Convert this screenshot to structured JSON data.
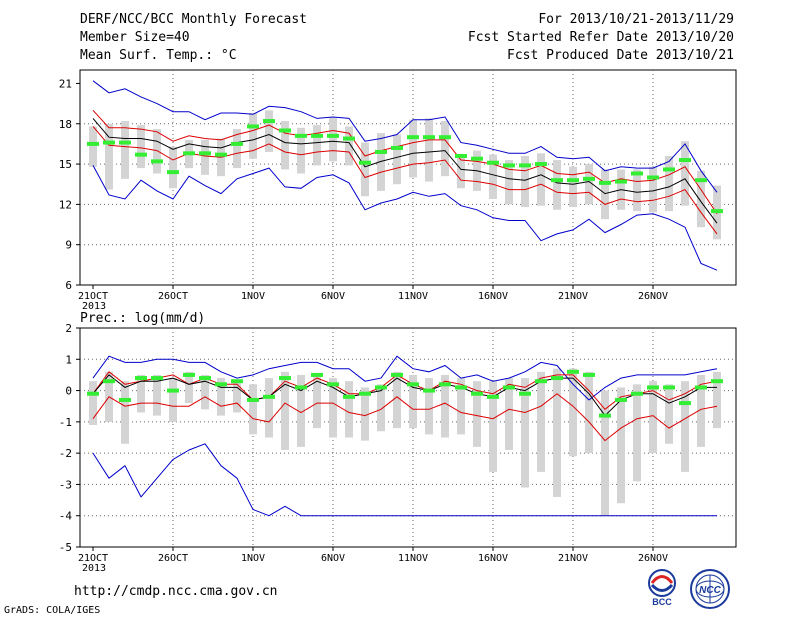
{
  "header": {
    "title": "DERF/NCC/BCC Monthly Forecast",
    "member_size": "Member Size=40",
    "variable_label": "Mean Surf. Temp.: °C",
    "forecast_period": "For 2013/10/21-2013/11/29",
    "refer_date": "Fcst Started Refer Date 2013/10/20",
    "produced_date": "Fcst Produced Date 2013/10/21"
  },
  "footer": {
    "url": "http://cmdp.ncc.cma.gov.cn",
    "credit": "GrADS: COLA/IGES",
    "logo_left_text": "BCC",
    "logo_right_text": "NCC"
  },
  "colors": {
    "mean": "#000000",
    "spread": "#dd0000",
    "envelope": "#0000cc",
    "box": "#d4d4d4",
    "median": "#33ee33"
  },
  "chart_data": [
    {
      "type": "line",
      "title": "Mean Surf. Temp.: °C",
      "x_tick_labels": [
        "21OCT",
        "26OCT",
        "1NOV",
        "6NOV",
        "11NOV",
        "16NOV",
        "21NOV",
        "26NOV"
      ],
      "x_year_label": "2013",
      "ylim": [
        6,
        22
      ],
      "yticks": [
        6,
        9,
        12,
        15,
        18,
        21
      ],
      "grid": true,
      "series": [
        {
          "role": "max",
          "values": [
            21.2,
            20.3,
            20.6,
            20.0,
            19.5,
            18.9,
            18.9,
            18.3,
            18.8,
            18.8,
            18.7,
            19.3,
            19.2,
            18.9,
            18.4,
            18.5,
            18.4,
            16.7,
            16.9,
            17.2,
            18.3,
            18.3,
            18.5,
            16.6,
            16.4,
            16.1,
            15.8,
            15.8,
            16.3,
            15.5,
            15.4,
            15.5,
            14.5,
            14.8,
            14.7,
            14.7,
            15.2,
            16.5,
            14.5,
            12.9
          ]
        },
        {
          "role": "upper",
          "values": [
            19.0,
            17.7,
            17.7,
            17.6,
            17.4,
            16.7,
            17.1,
            16.9,
            16.8,
            17.2,
            17.5,
            17.9,
            17.3,
            17.1,
            17.3,
            17.5,
            17.3,
            15.6,
            16.0,
            16.3,
            16.6,
            16.8,
            16.8,
            15.3,
            15.2,
            15.0,
            14.6,
            14.5,
            14.9,
            14.3,
            14.2,
            14.4,
            13.6,
            13.9,
            13.7,
            13.8,
            14.2,
            14.8,
            13.1,
            11.3
          ]
        },
        {
          "role": "mean",
          "values": [
            18.4,
            17.0,
            16.9,
            16.9,
            16.7,
            16.1,
            16.5,
            16.3,
            16.2,
            16.6,
            16.8,
            17.2,
            16.6,
            16.5,
            16.6,
            16.7,
            16.6,
            14.8,
            15.2,
            15.5,
            15.8,
            15.9,
            16.0,
            14.6,
            14.5,
            14.2,
            13.9,
            13.8,
            14.2,
            13.6,
            13.5,
            13.7,
            12.8,
            13.1,
            12.9,
            13.0,
            13.3,
            13.9,
            12.2,
            10.6
          ]
        },
        {
          "role": "lower",
          "values": [
            17.8,
            16.4,
            16.3,
            16.2,
            16.0,
            15.3,
            15.8,
            15.6,
            15.5,
            15.8,
            16.0,
            16.5,
            15.9,
            15.7,
            15.9,
            16.0,
            15.9,
            14.0,
            14.4,
            14.7,
            15.0,
            15.1,
            15.3,
            13.8,
            13.7,
            13.5,
            13.1,
            13.1,
            13.5,
            12.9,
            12.8,
            12.9,
            12.0,
            12.4,
            12.2,
            12.3,
            12.6,
            13.1,
            11.4,
            9.8
          ]
        },
        {
          "role": "min",
          "values": [
            14.9,
            12.7,
            12.4,
            13.8,
            13.0,
            12.4,
            14.1,
            13.4,
            12.8,
            13.9,
            14.3,
            14.7,
            13.3,
            13.2,
            14.0,
            14.2,
            13.6,
            11.6,
            12.1,
            12.4,
            12.9,
            12.6,
            12.8,
            11.9,
            11.6,
            11.0,
            10.8,
            10.8,
            9.3,
            9.8,
            10.1,
            10.9,
            9.9,
            10.5,
            11.2,
            11.3,
            10.9,
            10.3,
            7.6,
            7.1
          ]
        }
      ],
      "boxes": {
        "q_low": [
          14.8,
          13.1,
          13.9,
          14.7,
          14.3,
          13.2,
          14.7,
          14.2,
          14.1,
          14.7,
          15.4,
          15.9,
          14.6,
          14.3,
          14.9,
          15.2,
          14.9,
          12.6,
          13.0,
          13.5,
          14.0,
          13.7,
          14.1,
          13.2,
          13.0,
          12.4,
          12.0,
          11.8,
          11.9,
          11.6,
          11.8,
          12.0,
          10.9,
          11.6,
          11.5,
          11.4,
          11.5,
          11.9,
          10.3,
          9.4
        ],
        "q_high": [
          17.8,
          18.0,
          18.2,
          17.9,
          17.6,
          16.3,
          16.8,
          16.8,
          16.9,
          17.6,
          18.8,
          19.0,
          18.2,
          17.7,
          17.9,
          18.5,
          17.8,
          16.6,
          17.3,
          17.2,
          18.3,
          18.4,
          18.2,
          15.7,
          16.0,
          15.7,
          15.3,
          15.6,
          15.8,
          15.3,
          14.8,
          15.0,
          14.6,
          14.6,
          14.6,
          14.8,
          15.6,
          16.7,
          14.5,
          13.4
        ],
        "median": [
          16.5,
          16.6,
          16.6,
          15.7,
          15.2,
          14.4,
          15.8,
          15.8,
          15.7,
          16.5,
          17.8,
          18.2,
          17.5,
          17.1,
          17.1,
          17.1,
          16.9,
          15.1,
          15.9,
          16.2,
          17.0,
          17.0,
          17.0,
          15.6,
          15.4,
          15.1,
          14.9,
          14.9,
          15.0,
          13.8,
          13.8,
          13.9,
          13.6,
          13.7,
          14.3,
          14.0,
          14.6,
          15.3,
          13.8,
          11.5
        ]
      }
    },
    {
      "type": "line",
      "title": "Prec.: log(mm/d)",
      "x_tick_labels": [
        "21OCT",
        "26OCT",
        "1NOV",
        "6NOV",
        "11NOV",
        "16NOV",
        "21NOV",
        "26NOV"
      ],
      "x_year_label": "2013",
      "ylim": [
        -5,
        2
      ],
      "yticks": [
        -5,
        -4,
        -3,
        -2,
        -1,
        0,
        1,
        2
      ],
      "grid": true,
      "series": [
        {
          "role": "max",
          "values": [
            0.4,
            1.1,
            0.9,
            0.9,
            1.0,
            1.0,
            0.9,
            0.9,
            0.6,
            0.4,
            0.5,
            0.7,
            0.8,
            0.9,
            0.9,
            0.7,
            0.7,
            0.3,
            0.4,
            1.1,
            0.7,
            0.6,
            0.8,
            0.4,
            0.5,
            0.3,
            0.4,
            0.6,
            0.9,
            0.8,
            0.2,
            -0.3,
            0.1,
            0.4,
            0.5,
            0.5,
            0.5,
            0.5,
            0.6,
            0.7
          ]
        },
        {
          "role": "upper",
          "values": [
            -0.1,
            0.6,
            0.2,
            0.3,
            0.4,
            0.5,
            0.2,
            0.4,
            0.2,
            0.2,
            -0.3,
            -0.2,
            0.3,
            0.1,
            0.4,
            0.2,
            -0.1,
            -0.1,
            0.1,
            0.5,
            0.2,
            0.0,
            0.3,
            0.2,
            0.0,
            -0.1,
            0.2,
            0.1,
            0.4,
            0.5,
            0.5,
            0.0,
            -0.6,
            -0.2,
            -0.1,
            0.0,
            -0.3,
            -0.1,
            0.2,
            0.3
          ]
        },
        {
          "role": "mean",
          "values": [
            -0.1,
            0.5,
            0.1,
            0.3,
            0.3,
            0.4,
            0.2,
            0.3,
            0.1,
            0.1,
            -0.3,
            -0.2,
            0.2,
            0.0,
            0.3,
            0.1,
            -0.2,
            -0.1,
            0.0,
            0.4,
            0.1,
            0.0,
            0.2,
            0.1,
            -0.1,
            -0.2,
            0.1,
            0.0,
            0.3,
            0.4,
            0.4,
            -0.1,
            -0.8,
            -0.3,
            -0.1,
            -0.1,
            -0.4,
            -0.2,
            0.1,
            0.1
          ]
        },
        {
          "role": "lower",
          "values": [
            -0.9,
            -0.2,
            -0.5,
            -0.4,
            -0.4,
            -0.5,
            -0.5,
            -0.2,
            -0.5,
            -0.4,
            -0.9,
            -1.0,
            -0.4,
            -0.7,
            -0.4,
            -0.4,
            -0.7,
            -0.8,
            -0.6,
            -0.2,
            -0.6,
            -0.6,
            -0.4,
            -0.7,
            -0.8,
            -0.9,
            -0.6,
            -0.7,
            -0.5,
            -0.1,
            -0.5,
            -1.0,
            -1.6,
            -1.2,
            -0.9,
            -0.8,
            -1.2,
            -0.9,
            -0.6,
            -0.5
          ]
        },
        {
          "role": "min",
          "values": [
            -2.0,
            -2.8,
            -2.4,
            -3.4,
            -2.8,
            -2.2,
            -1.9,
            -1.7,
            -2.4,
            -2.8,
            -3.8,
            -4.0,
            -3.7,
            -4.0,
            -4.0,
            -4.0,
            -4.0,
            -4.0,
            -4.0,
            -4.0,
            -4.0,
            -4.0,
            -4.0,
            -4.0,
            -4.0,
            -4.0,
            -4.0,
            -4.0,
            -4.0,
            -4.0,
            -4.0,
            -4.0,
            -4.0,
            -4.0,
            -4.0,
            -4.0,
            -4.0,
            -4.0,
            -4.0,
            -4.0
          ]
        }
      ],
      "boxes": {
        "q_low": [
          -1.1,
          -1.0,
          -1.7,
          -0.7,
          -0.8,
          -1.0,
          -0.4,
          -0.6,
          -0.8,
          -0.7,
          -1.4,
          -1.5,
          -1.9,
          -1.8,
          -1.2,
          -1.5,
          -1.5,
          -1.6,
          -1.3,
          -1.2,
          -1.2,
          -1.4,
          -1.5,
          -1.4,
          -1.8,
          -2.6,
          -1.9,
          -3.1,
          -2.6,
          -3.4,
          -2.1,
          -2.0,
          -4.0,
          -3.6,
          -2.9,
          -2.0,
          -1.7,
          -2.6,
          -1.8,
          -1.2
        ],
        "q_high": [
          0.3,
          0.6,
          0.3,
          0.5,
          0.5,
          0.4,
          0.6,
          0.5,
          0.4,
          0.3,
          0.2,
          0.4,
          0.6,
          0.5,
          0.5,
          0.4,
          0.3,
          0.1,
          0.2,
          0.6,
          0.5,
          0.4,
          0.5,
          0.4,
          0.3,
          0.3,
          0.4,
          0.4,
          0.6,
          0.7,
          0.7,
          0.6,
          0.0,
          0.1,
          0.2,
          0.3,
          0.2,
          0.3,
          0.5,
          0.6
        ],
        "median": [
          -0.1,
          0.3,
          -0.3,
          0.4,
          0.4,
          0.0,
          0.5,
          0.4,
          0.2,
          0.3,
          -0.3,
          -0.2,
          0.4,
          0.1,
          0.5,
          0.2,
          -0.2,
          -0.1,
          0.1,
          0.5,
          0.2,
          0.0,
          0.2,
          0.1,
          -0.1,
          -0.2,
          0.1,
          -0.1,
          0.3,
          0.4,
          0.6,
          0.5,
          -0.8,
          -0.3,
          -0.1,
          0.1,
          0.1,
          -0.4,
          0.1,
          0.3
        ]
      }
    }
  ]
}
